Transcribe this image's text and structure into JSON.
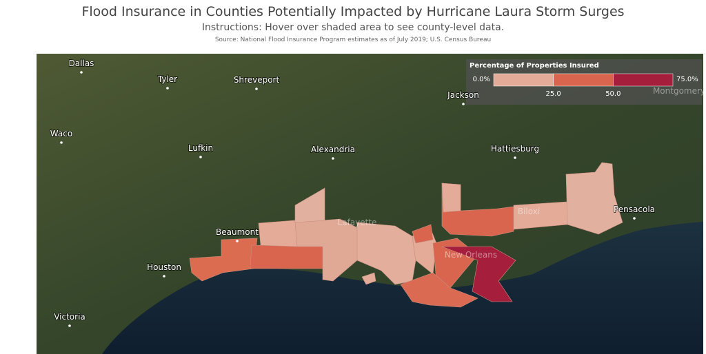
{
  "header": {
    "title": "Flood Insurance in Counties Potentially Impacted by Hurricane Laura Storm Surges",
    "instructions": "Instructions: Hover over shaded area to see county-level data.",
    "source": "Source: National Flood Insurance Program estimates as of July 2019; U.S. Census Bureau"
  },
  "legend": {
    "title": "Percentage of Properties Insured",
    "labels": [
      "0.0%",
      "25.0",
      "50.0",
      "75.0%"
    ],
    "colors": [
      "#e3ab98",
      "#d9654f",
      "#a51f3c"
    ]
  },
  "cities": [
    "Dallas",
    "Tyler",
    "Shreveport",
    "Jackson",
    "Montgomery",
    "Waco",
    "Lufkin",
    "Alexandria",
    "Hattiesburg",
    "Lafayette",
    "Beaumont",
    "Houston",
    "New Orleans",
    "Biloxi",
    "Pensacola",
    "Victoria"
  ]
}
